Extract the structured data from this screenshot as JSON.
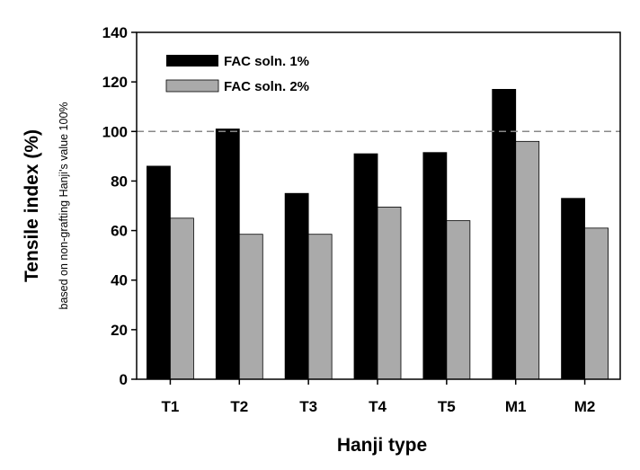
{
  "chart_data": {
    "type": "bar",
    "categories": [
      "T1",
      "T2",
      "T3",
      "T4",
      "T5",
      "M1",
      "M2"
    ],
    "series": [
      {
        "name": "FAC soln. 1%",
        "values": [
          86,
          101,
          75,
          91,
          91.5,
          117,
          73
        ],
        "color": "#000000"
      },
      {
        "name": "FAC soln. 2%",
        "values": [
          65,
          58.5,
          58.5,
          69.5,
          64,
          96,
          61
        ],
        "color": "#aaaaaa"
      }
    ],
    "xlabel": "Hanji type",
    "ylabel": "Tensile index (%)",
    "ylabel_sub": "based on non-grafting Hanji's value 100%",
    "ylim": [
      0,
      140
    ],
    "yticks": [
      0,
      20,
      40,
      60,
      80,
      100,
      120,
      140
    ],
    "reference_line": 100,
    "legend_position": "top-left",
    "grid": false
  }
}
